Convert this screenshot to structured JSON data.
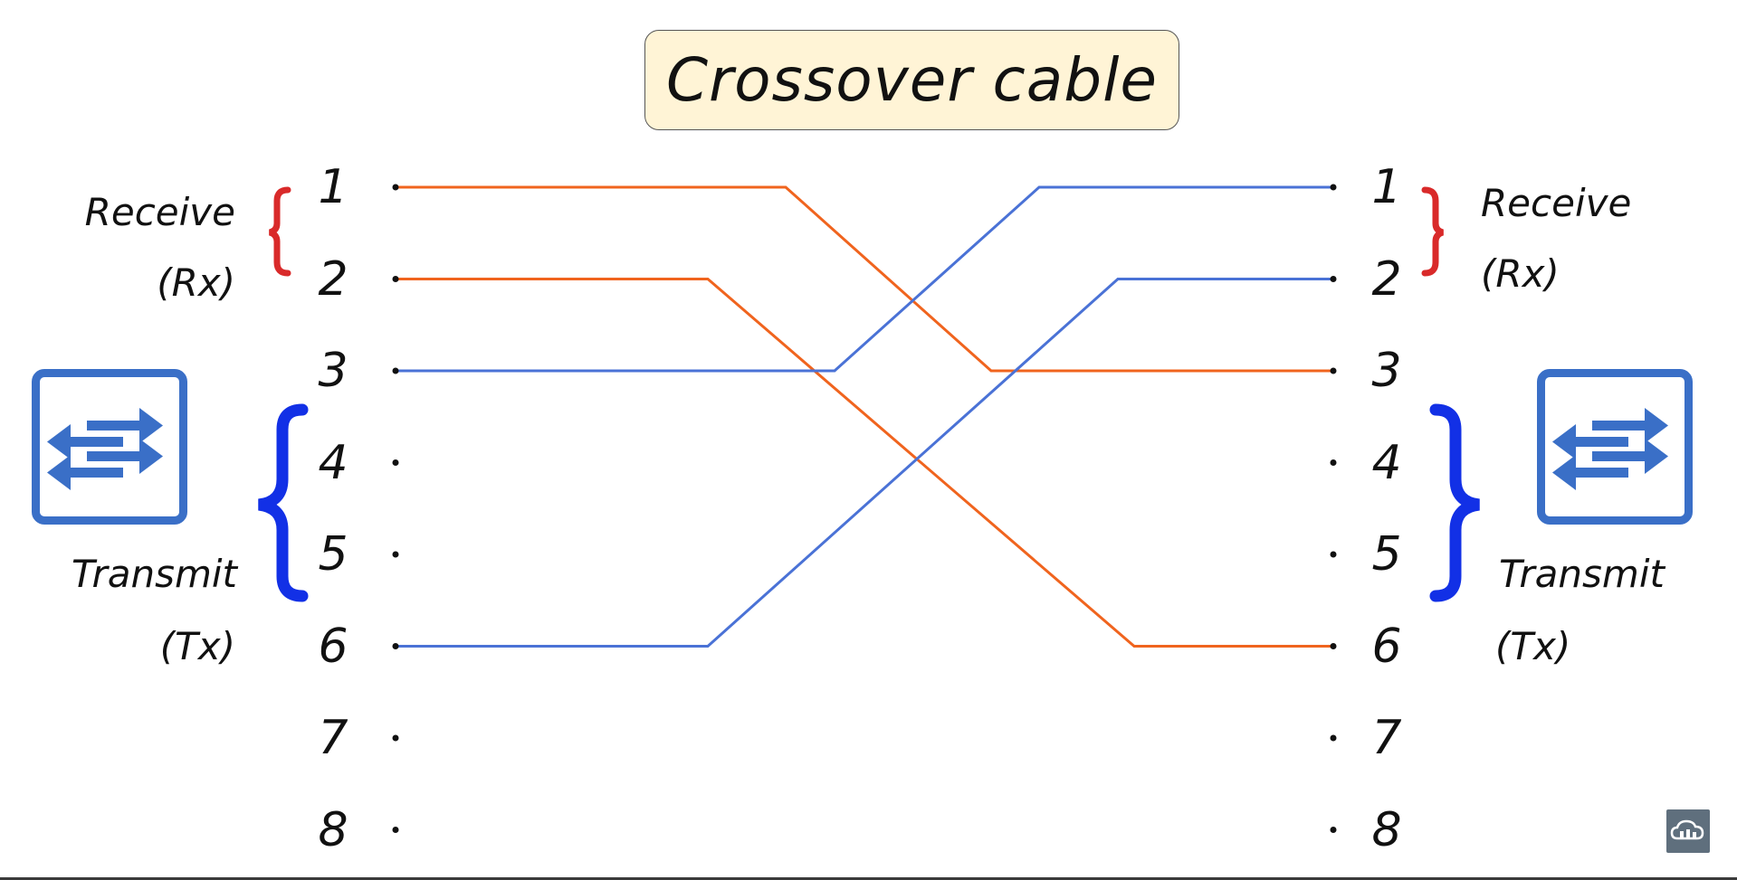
{
  "title": "Crossover cable",
  "labels": {
    "left_receive": "Receive",
    "left_rx": "(Rx)",
    "left_transmit": "Transmit",
    "left_tx": "(Tx)",
    "right_receive": "Receive",
    "right_rx": "(Rx)",
    "right_transmit": "Transmit",
    "right_tx": "(Tx)"
  },
  "pins_left": [
    "1",
    "2",
    "3",
    "4",
    "5",
    "6",
    "7",
    "8"
  ],
  "pins_right": [
    "1",
    "2",
    "3",
    "4",
    "5",
    "6",
    "7",
    "8"
  ],
  "connections": [
    {
      "from": 1,
      "to": 3,
      "color": "#f0641e"
    },
    {
      "from": 2,
      "to": 6,
      "color": "#f0641e"
    },
    {
      "from": 3,
      "to": 1,
      "color": "#4a72d6"
    },
    {
      "from": 6,
      "to": 2,
      "color": "#4a72d6"
    }
  ],
  "colors": {
    "receive_brace": "#d92a2a",
    "transmit_brace": "#1230e6",
    "switch_icon": "#3a6fc7",
    "title_bg": "#fff4d6"
  },
  "icons": {
    "left_device": "switch-icon",
    "right_device": "switch-icon",
    "corner_logo": "cloud-logo-icon"
  }
}
